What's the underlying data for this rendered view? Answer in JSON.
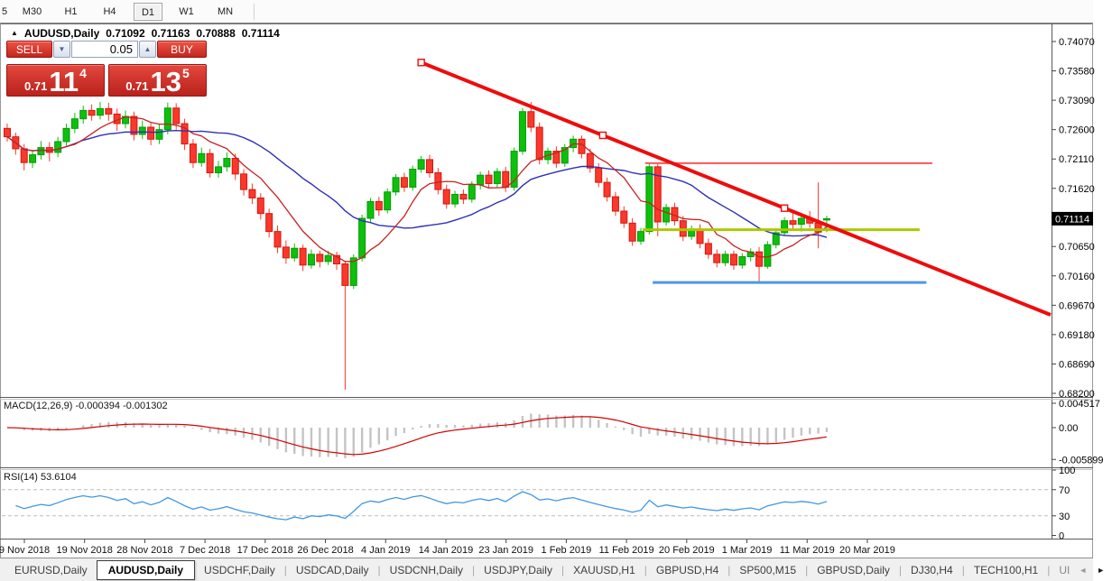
{
  "toolbar": {
    "timeframes": [
      {
        "label": "5",
        "partial": true
      },
      {
        "label": "M30"
      },
      {
        "label": "H1"
      },
      {
        "label": "H4"
      },
      {
        "label": "D1",
        "active": true
      },
      {
        "label": "W1"
      },
      {
        "label": "MN"
      }
    ]
  },
  "chart_title": {
    "expander": "▲",
    "symbol": "AUDUSD,Daily",
    "open": "0.71092",
    "high": "0.71163",
    "low": "0.70888",
    "close": "0.71114"
  },
  "trade_panel": {
    "sell_label": "SELL",
    "buy_label": "BUY",
    "volume": "0.05",
    "sell_price_base": "0.71",
    "sell_price_big": "11",
    "sell_price_sup": "4",
    "buy_price_base": "0.71",
    "buy_price_big": "13",
    "buy_price_sup": "5"
  },
  "colors": {
    "bull": "#0cc00c",
    "bull_border": "#089a08",
    "bear": "#fb382b",
    "bear_border": "#cf1a10",
    "ma_fast": "#c62320",
    "ma_slow": "#3030b8",
    "macd_hist": "#c4c4c4",
    "macd_signal": "#d40000",
    "rsi_line": "#4197e3",
    "rsi_level": "#bcbcbc",
    "axis_text": "#000000",
    "price_tag_bg": "#000000",
    "price_tag_text": "#ffffff"
  },
  "chart_data": {
    "type": "candlestick",
    "symbol": "AUDUSD",
    "period": "Daily",
    "ohlc_current": {
      "open": 0.71092,
      "high": 0.71163,
      "low": 0.70888,
      "close": 0.71114
    },
    "price_axis": {
      "ticks": [
        "0.74070",
        "0.73580",
        "0.73090",
        "0.72600",
        "0.72110",
        "0.71620",
        "0.70650",
        "0.70160",
        "0.69670",
        "0.69180",
        "0.68690",
        "0.68200"
      ],
      "current": "0.71114"
    },
    "time_axis": {
      "labels": [
        "9 Nov 2018",
        "19 Nov 2018",
        "28 Nov 2018",
        "7 Dec 2018",
        "17 Dec 2018",
        "26 Dec 2018",
        "4 Jan 2019",
        "14 Jan 2019",
        "23 Jan 2019",
        "1 Feb 2019",
        "11 Feb 2019",
        "20 Feb 2019",
        "1 Mar 2019",
        "11 Mar 2019",
        "20 Mar 2019"
      ]
    },
    "candles": [
      [
        0.7262,
        0.727,
        0.724,
        0.7248
      ],
      [
        0.7248,
        0.7255,
        0.7218,
        0.7228
      ],
      [
        0.7228,
        0.7236,
        0.7192,
        0.7205
      ],
      [
        0.7205,
        0.7226,
        0.7196,
        0.7218
      ],
      [
        0.7218,
        0.7241,
        0.721,
        0.723
      ],
      [
        0.723,
        0.7239,
        0.7207,
        0.7222
      ],
      [
        0.7222,
        0.7248,
        0.7214,
        0.724
      ],
      [
        0.724,
        0.727,
        0.7233,
        0.7262
      ],
      [
        0.7262,
        0.7288,
        0.7254,
        0.7278
      ],
      [
        0.7278,
        0.73,
        0.727,
        0.7292
      ],
      [
        0.7292,
        0.7302,
        0.7275,
        0.7284
      ],
      [
        0.7284,
        0.7306,
        0.7277,
        0.7295
      ],
      [
        0.7295,
        0.7305,
        0.7275,
        0.7286
      ],
      [
        0.7286,
        0.7295,
        0.7258,
        0.727
      ],
      [
        0.727,
        0.7292,
        0.7262,
        0.7282
      ],
      [
        0.7282,
        0.729,
        0.7242,
        0.7252
      ],
      [
        0.7252,
        0.7275,
        0.7244,
        0.7264
      ],
      [
        0.7264,
        0.7272,
        0.7234,
        0.7244
      ],
      [
        0.7244,
        0.727,
        0.7236,
        0.726
      ],
      [
        0.726,
        0.7305,
        0.7252,
        0.7296
      ],
      [
        0.7296,
        0.7304,
        0.726,
        0.727
      ],
      [
        0.727,
        0.7278,
        0.7226,
        0.7236
      ],
      [
        0.7236,
        0.7244,
        0.7196,
        0.7205
      ],
      [
        0.7205,
        0.723,
        0.7198,
        0.722
      ],
      [
        0.722,
        0.7228,
        0.718,
        0.7188
      ],
      [
        0.7188,
        0.7208,
        0.718,
        0.7198
      ],
      [
        0.7198,
        0.7222,
        0.719,
        0.7212
      ],
      [
        0.7212,
        0.722,
        0.7176,
        0.7186
      ],
      [
        0.7186,
        0.7194,
        0.715,
        0.716
      ],
      [
        0.716,
        0.717,
        0.7136,
        0.7146
      ],
      [
        0.7146,
        0.7154,
        0.711,
        0.712
      ],
      [
        0.712,
        0.7128,
        0.708,
        0.709
      ],
      [
        0.709,
        0.71,
        0.7054,
        0.7064
      ],
      [
        0.7064,
        0.7075,
        0.7036,
        0.7046
      ],
      [
        0.7046,
        0.707,
        0.704,
        0.7062
      ],
      [
        0.7062,
        0.7068,
        0.7024,
        0.7034
      ],
      [
        0.7034,
        0.706,
        0.7028,
        0.7052
      ],
      [
        0.7052,
        0.7058,
        0.703,
        0.704
      ],
      [
        0.704,
        0.7058,
        0.7034,
        0.705
      ],
      [
        0.705,
        0.7056,
        0.7026,
        0.7036
      ],
      [
        0.7036,
        0.704,
        0.6826,
        0.7
      ],
      [
        0.7,
        0.7052,
        0.6994,
        0.7046
      ],
      [
        0.7046,
        0.7118,
        0.704,
        0.7112
      ],
      [
        0.7112,
        0.7146,
        0.7104,
        0.714
      ],
      [
        0.714,
        0.7148,
        0.7116,
        0.7126
      ],
      [
        0.7126,
        0.7162,
        0.712,
        0.7156
      ],
      [
        0.7156,
        0.7186,
        0.715,
        0.718
      ],
      [
        0.718,
        0.7188,
        0.7156,
        0.7164
      ],
      [
        0.7164,
        0.72,
        0.7158,
        0.7194
      ],
      [
        0.7194,
        0.7216,
        0.7188,
        0.721
      ],
      [
        0.721,
        0.7218,
        0.718,
        0.7188
      ],
      [
        0.7188,
        0.7196,
        0.7152,
        0.716
      ],
      [
        0.716,
        0.7168,
        0.7128,
        0.7136
      ],
      [
        0.7136,
        0.7158,
        0.713,
        0.7152
      ],
      [
        0.7152,
        0.716,
        0.7136,
        0.7144
      ],
      [
        0.7144,
        0.7174,
        0.7138,
        0.7168
      ],
      [
        0.7168,
        0.719,
        0.716,
        0.7184
      ],
      [
        0.7184,
        0.7192,
        0.7162,
        0.717
      ],
      [
        0.717,
        0.7196,
        0.7164,
        0.719
      ],
      [
        0.719,
        0.7198,
        0.7156,
        0.7164
      ],
      [
        0.7164,
        0.723,
        0.7158,
        0.7224
      ],
      [
        0.7224,
        0.7296,
        0.7218,
        0.729
      ],
      [
        0.729,
        0.7306,
        0.7256,
        0.7264
      ],
      [
        0.7264,
        0.7272,
        0.7202,
        0.721
      ],
      [
        0.721,
        0.723,
        0.7202,
        0.7224
      ],
      [
        0.7224,
        0.7232,
        0.7196,
        0.7204
      ],
      [
        0.7204,
        0.7236,
        0.7198,
        0.723
      ],
      [
        0.723,
        0.725,
        0.7222,
        0.7244
      ],
      [
        0.7244,
        0.725,
        0.7212,
        0.722
      ],
      [
        0.722,
        0.7228,
        0.7188,
        0.7196
      ],
      [
        0.7196,
        0.7204,
        0.7164,
        0.7172
      ],
      [
        0.7172,
        0.718,
        0.714,
        0.7148
      ],
      [
        0.7148,
        0.7156,
        0.7116,
        0.7124
      ],
      [
        0.7124,
        0.7132,
        0.7096,
        0.7104
      ],
      [
        0.7104,
        0.7112,
        0.7066,
        0.7074
      ],
      [
        0.7074,
        0.7096,
        0.7068,
        0.709
      ],
      [
        0.709,
        0.7204,
        0.7085,
        0.7198
      ],
      [
        0.7198,
        0.7205,
        0.7082,
        0.7106
      ],
      [
        0.7106,
        0.7136,
        0.71,
        0.713
      ],
      [
        0.713,
        0.7138,
        0.71,
        0.7108
      ],
      [
        0.7108,
        0.7116,
        0.7074,
        0.7082
      ],
      [
        0.7082,
        0.71,
        0.7076,
        0.7094
      ],
      [
        0.7094,
        0.7102,
        0.7062,
        0.707
      ],
      [
        0.707,
        0.7078,
        0.7044,
        0.7052
      ],
      [
        0.7052,
        0.706,
        0.703,
        0.7038
      ],
      [
        0.7038,
        0.7058,
        0.7032,
        0.7052
      ],
      [
        0.7052,
        0.7058,
        0.7026,
        0.7034
      ],
      [
        0.7034,
        0.7054,
        0.7028,
        0.7048
      ],
      [
        0.7048,
        0.7062,
        0.704,
        0.7056
      ],
      [
        0.7056,
        0.7064,
        0.7006,
        0.7032
      ],
      [
        0.7032,
        0.7074,
        0.7028,
        0.7068
      ],
      [
        0.7068,
        0.7094,
        0.7062,
        0.7088
      ],
      [
        0.7088,
        0.7114,
        0.7082,
        0.7108
      ],
      [
        0.7108,
        0.7122,
        0.7094,
        0.7102
      ],
      [
        0.7102,
        0.7118,
        0.709,
        0.7112
      ],
      [
        0.7112,
        0.7124,
        0.7096,
        0.7104
      ],
      [
        0.7104,
        0.7172,
        0.7062,
        0.7089
      ],
      [
        0.71092,
        0.71163,
        0.70888,
        0.71114
      ]
    ],
    "overlays": {
      "ma_fast": {
        "period": 8
      },
      "ma_slow": {
        "period": 21
      },
      "trendline": {
        "name": "descending-trendline",
        "width": 4,
        "color": "#ee0c0c",
        "candle1": 49,
        "price1": 0.7372,
        "candle2": 92,
        "price2": 0.7129,
        "ray": true
      },
      "hlines": [
        {
          "name": "resistance-hline-red",
          "price": 0.7204,
          "from_candle": 75.5,
          "to_candle": 109.5,
          "width": 2,
          "color": "#fc5555"
        },
        {
          "name": "pivot-hline-olive",
          "price": 0.7093,
          "from_candle": 75.2,
          "to_candle": 108.0,
          "width": 3,
          "color": "#abc800"
        },
        {
          "name": "support-hline-blue",
          "price": 0.7005,
          "from_candle": 76.4,
          "to_candle": 108.8,
          "width": 3,
          "color": "#4c98e8"
        }
      ]
    },
    "macd": {
      "label": "MACD(12,26,9)",
      "value_macd": "-0.000394",
      "value_signal": "-0.001302",
      "fast": 12,
      "slow": 26,
      "signal": 9,
      "axis_ticks": [
        "0.004517",
        "0.00",
        "-0.005899"
      ]
    },
    "rsi": {
      "label": "RSI(14)",
      "value": "53.6104",
      "period": 14,
      "axis_ticks": [
        "100",
        "70",
        "30",
        "0"
      ],
      "levels": [
        70,
        30
      ]
    }
  },
  "bottom_tabs": {
    "items": [
      {
        "label": "EURUSD,Daily"
      },
      {
        "label": "AUDUSD,Daily",
        "active": true
      },
      {
        "label": "USDCHF,Daily"
      },
      {
        "label": "USDCAD,Daily"
      },
      {
        "label": "USDCNH,Daily"
      },
      {
        "label": "USDJPY,Daily"
      },
      {
        "label": "XAUUSD,H1"
      },
      {
        "label": "GBPUSD,H4"
      },
      {
        "label": "SP500,M15"
      },
      {
        "label": "GBPUSD,Daily"
      },
      {
        "label": "DJ30,H4"
      },
      {
        "label": "TECH100,H1"
      },
      {
        "label": "UI",
        "truncated": true
      }
    ],
    "scroll_left": "◄",
    "scroll_right": "►"
  }
}
